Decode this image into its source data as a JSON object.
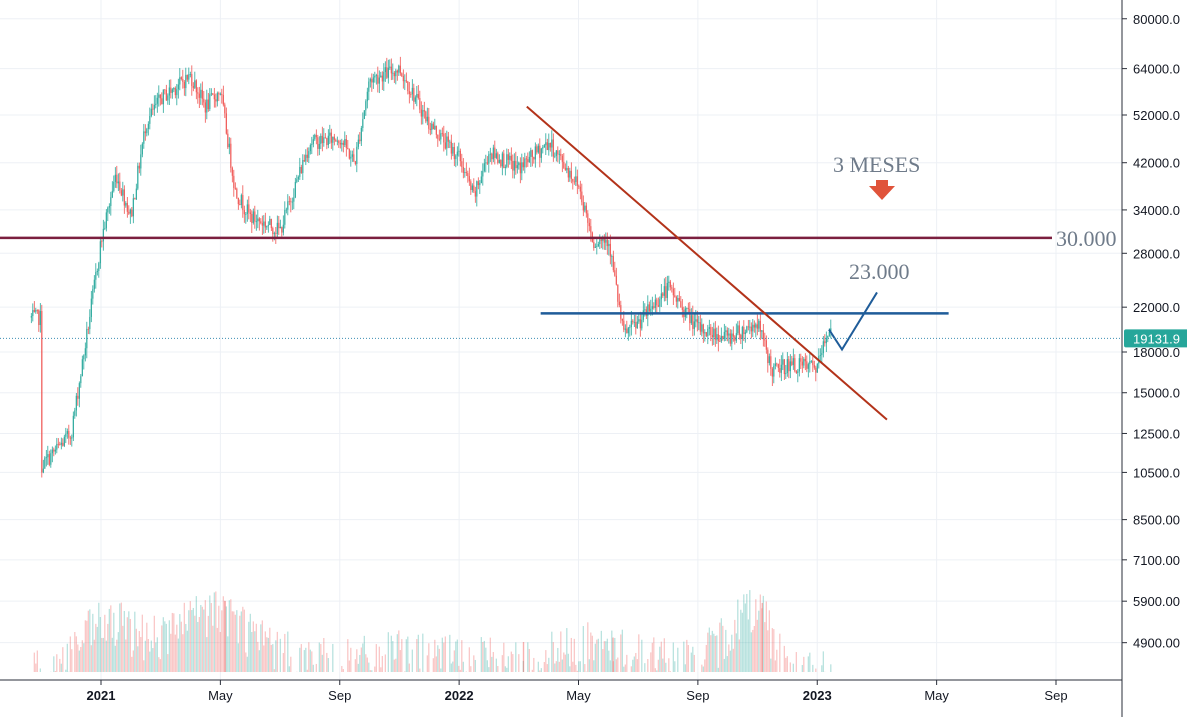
{
  "chart_data": {
    "type": "candlestick",
    "scale": "log",
    "grid": true,
    "y_ticks": [
      80000,
      64000,
      52000,
      42000,
      34000,
      28000,
      22000,
      18000,
      15000,
      12500,
      10500,
      8500,
      7100,
      5900,
      4900
    ],
    "y_tick_labels": [
      "80000.0",
      "64000.0",
      "52000.0",
      "42000.0",
      "34000.0",
      "28000.0",
      "22000.0",
      "18000.0",
      "15000.0",
      "12500.0",
      "10500.0",
      "8500.00",
      "7100.00",
      "5900.00",
      "4900.00"
    ],
    "x_ticks": [
      {
        "date": "2021-01",
        "label": "2021",
        "year": true
      },
      {
        "date": "2021-05",
        "label": "May",
        "year": false
      },
      {
        "date": "2021-09",
        "label": "Sep",
        "year": false
      },
      {
        "date": "2022-01",
        "label": "2022",
        "year": true
      },
      {
        "date": "2022-05",
        "label": "May",
        "year": false
      },
      {
        "date": "2022-09",
        "label": "Sep",
        "year": false
      },
      {
        "date": "2023-01",
        "label": "2023",
        "year": true
      },
      {
        "date": "2023-05",
        "label": "May",
        "year": false
      },
      {
        "date": "2023-09",
        "label": "Sep",
        "year": false
      }
    ],
    "price_path": [
      [
        "2020-11",
        10800
      ],
      [
        "2020-12",
        12500
      ],
      [
        "2020-12",
        19000
      ],
      [
        "2021-01",
        29500
      ],
      [
        "2021-01",
        40000
      ],
      [
        "2021-02",
        33000
      ],
      [
        "2021-02",
        50000
      ],
      [
        "2021-03",
        56000
      ],
      [
        "2021-04",
        62000
      ],
      [
        "2021-04",
        54000
      ],
      [
        "2021-05",
        58000
      ],
      [
        "2021-05",
        37000
      ],
      [
        "2021-06",
        33000
      ],
      [
        "2021-07",
        31000
      ],
      [
        "2021-08",
        46000
      ],
      [
        "2021-09",
        47000
      ],
      [
        "2021-09",
        42000
      ],
      [
        "2021-10",
        61000
      ],
      [
        "2021-11",
        64000
      ],
      [
        "2021-12",
        50000
      ],
      [
        "2022-01",
        43000
      ],
      [
        "2022-01",
        36000
      ],
      [
        "2022-02",
        44000
      ],
      [
        "2022-03",
        41000
      ],
      [
        "2022-04",
        46000
      ],
      [
        "2022-05",
        38000
      ],
      [
        "2022-05",
        29500
      ],
      [
        "2022-06",
        30000
      ],
      [
        "2022-06",
        19500
      ],
      [
        "2022-07",
        20500
      ],
      [
        "2022-08",
        24000
      ],
      [
        "2022-09",
        20000
      ],
      [
        "2022-10",
        19200
      ],
      [
        "2022-11",
        20500
      ],
      [
        "2022-11",
        16500
      ],
      [
        "2022-12",
        17000
      ],
      [
        "2023-01",
        16800
      ],
      [
        "2023-01",
        21000
      ]
    ],
    "volume_path": [
      [
        "2020-11",
        4000
      ],
      [
        "2021-01",
        5200
      ],
      [
        "2021-03",
        4900
      ],
      [
        "2021-05",
        5600
      ],
      [
        "2021-07",
        4500
      ],
      [
        "2021-09",
        4300
      ],
      [
        "2021-11",
        4500
      ],
      [
        "2022-01",
        4400
      ],
      [
        "2022-03",
        4300
      ],
      [
        "2022-05",
        4700
      ],
      [
        "2022-07",
        4500
      ],
      [
        "2022-09",
        4300
      ],
      [
        "2022-11",
        5800
      ],
      [
        "2022-12",
        4200
      ],
      [
        "2023-01",
        4100
      ]
    ],
    "current_price": 19131.9,
    "current_price_label": "19131.9",
    "lines": [
      {
        "name": "support-30000",
        "color": "#7b1f3f",
        "y": 30000,
        "from": "2020-11",
        "to": "2023-12"
      },
      {
        "name": "resistance-21500",
        "color": "#1f5c99",
        "y": 21400,
        "from": "2022-04",
        "to": "2023-05"
      },
      {
        "name": "downtrend",
        "color": "#b3331a",
        "points": [
          [
            "2022-03",
            54000
          ],
          [
            "2023-03",
            13300
          ]
        ]
      }
    ],
    "annotations": [
      {
        "name": "label-30000",
        "text": "30.000",
        "date": "2023-12",
        "y": 30000
      },
      {
        "name": "label-23000",
        "text": "23.000",
        "date": "2023-03",
        "y": 24800
      },
      {
        "name": "label-3-meses",
        "text": "3 MESES",
        "date": "2023-03",
        "y": 43500
      }
    ],
    "projection": [
      [
        "2023-01",
        19900
      ],
      [
        "2023-02",
        18200
      ],
      [
        "2023-03",
        23500
      ]
    ],
    "colors": {
      "up": "#26a69a",
      "down": "#ef5350",
      "grid": "#edf0f5",
      "axis": "#131722",
      "price_line": "#3c8fb3",
      "badge": "#26a69a",
      "arrow": "#e0533a"
    }
  }
}
